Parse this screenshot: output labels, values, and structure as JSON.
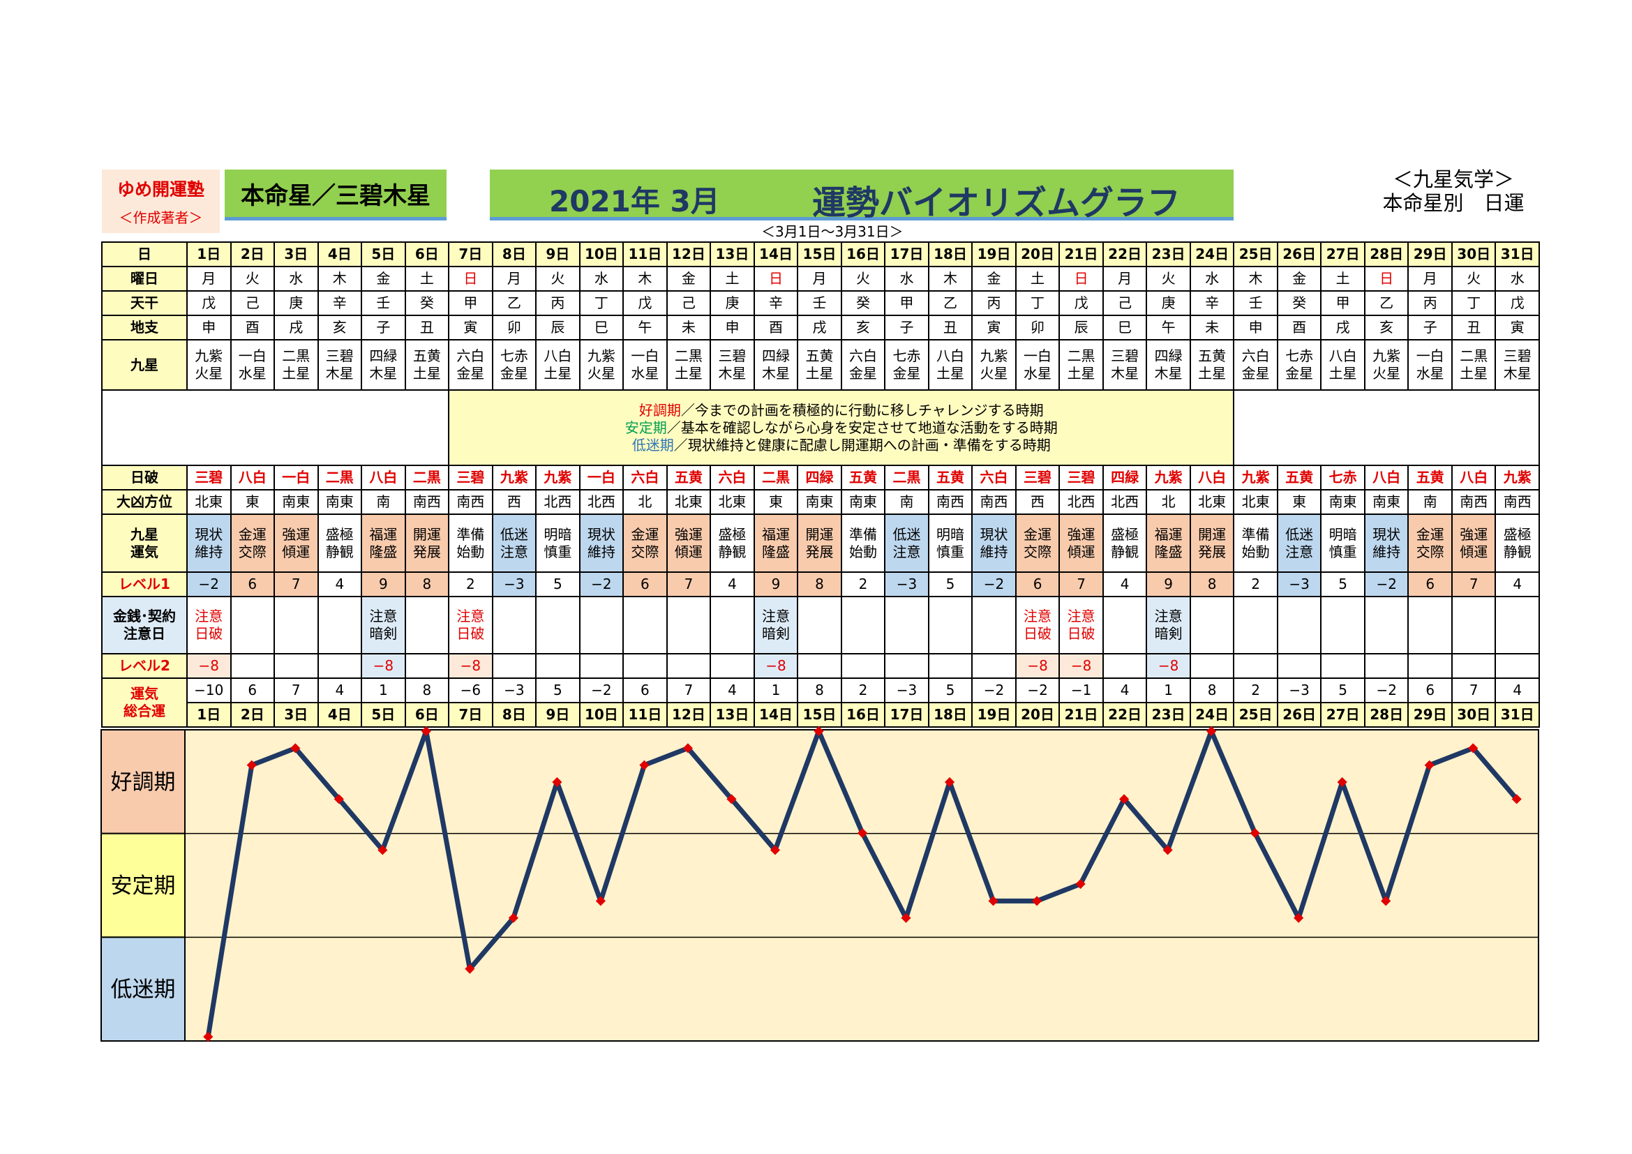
{
  "header": {
    "org_name": "ゆめ開運塾",
    "org_sub": "＜作成著者＞",
    "honmei": "本命星／三碧木星",
    "year_month": "2021年 3月",
    "title": "運勢バイオリズムグラフ",
    "range": "＜3月1日～3月31日＞",
    "kyusei_title": "＜九星気学＞",
    "kyusei_sub": "本命星別　日運"
  },
  "row_labels": {
    "day": "日",
    "weekday": "曜日",
    "tenkan": "天干",
    "chishi": "地支",
    "kyusei": "九星",
    "nippa": "日破",
    "daikyo": "大凶方位",
    "unki": "九星\n運気",
    "level1": "レベル1",
    "kinsen": "金銭･契約\n注意日",
    "level2": "レベル2",
    "sogoun": "運気\n総合運"
  },
  "messages": [
    {
      "key": "好調期",
      "text": "／今までの計画を積極的に行動に移しチャレンジする時期"
    },
    {
      "key": "安定期",
      "text": "／基本を確認しながら心身を安定させて地道な活動をする時期"
    },
    {
      "key": "低迷期",
      "text": "／現状維持と健康に配慮し開運期への計画・準備をする時期"
    }
  ],
  "days": [
    "1日",
    "2日",
    "3日",
    "4日",
    "5日",
    "6日",
    "7日",
    "8日",
    "9日",
    "10日",
    "11日",
    "12日",
    "13日",
    "14日",
    "15日",
    "16日",
    "17日",
    "18日",
    "19日",
    "20日",
    "21日",
    "22日",
    "23日",
    "24日",
    "25日",
    "26日",
    "27日",
    "28日",
    "29日",
    "30日",
    "31日"
  ],
  "weekdays": [
    "月",
    "火",
    "水",
    "木",
    "金",
    "土",
    "日",
    "月",
    "火",
    "水",
    "木",
    "金",
    "土",
    "日",
    "月",
    "火",
    "水",
    "木",
    "金",
    "土",
    "日",
    "月",
    "火",
    "水",
    "木",
    "金",
    "土",
    "日",
    "月",
    "火",
    "水"
  ],
  "tenkan": [
    "戊",
    "己",
    "庚",
    "辛",
    "壬",
    "癸",
    "甲",
    "乙",
    "丙",
    "丁",
    "戊",
    "己",
    "庚",
    "辛",
    "壬",
    "癸",
    "甲",
    "乙",
    "丙",
    "丁",
    "戊",
    "己",
    "庚",
    "辛",
    "壬",
    "癸",
    "甲",
    "乙",
    "丙",
    "丁",
    "戊"
  ],
  "chishi": [
    "申",
    "酉",
    "戌",
    "亥",
    "子",
    "丑",
    "寅",
    "卯",
    "辰",
    "巳",
    "午",
    "未",
    "申",
    "酉",
    "戌",
    "亥",
    "子",
    "丑",
    "寅",
    "卯",
    "辰",
    "巳",
    "午",
    "未",
    "申",
    "酉",
    "戌",
    "亥",
    "子",
    "丑",
    "寅"
  ],
  "kyusei": [
    "九紫\n火星",
    "一白\n水星",
    "二黒\n土星",
    "三碧\n木星",
    "四緑\n木星",
    "五黄\n土星",
    "六白\n金星",
    "七赤\n金星",
    "八白\n土星",
    "九紫\n火星",
    "一白\n水星",
    "二黒\n土星",
    "三碧\n木星",
    "四緑\n木星",
    "五黄\n土星",
    "六白\n金星",
    "七赤\n金星",
    "八白\n土星",
    "九紫\n火星",
    "一白\n水星",
    "二黒\n土星",
    "三碧\n木星",
    "四緑\n木星",
    "五黄\n土星",
    "六白\n金星",
    "七赤\n金星",
    "八白\n土星",
    "九紫\n火星",
    "一白\n水星",
    "二黒\n土星",
    "三碧\n木星"
  ],
  "nippa": [
    "三碧",
    "八白",
    "一白",
    "二黒",
    "八白",
    "二黒",
    "三碧",
    "九紫",
    "九紫",
    "一白",
    "六白",
    "五黄",
    "六白",
    "二黒",
    "四緑",
    "五黄",
    "二黒",
    "五黄",
    "六白",
    "三碧",
    "三碧",
    "四緑",
    "九紫",
    "八白",
    "九紫",
    "五黄",
    "七赤",
    "八白",
    "五黄",
    "八白",
    "九紫"
  ],
  "daikyo": [
    "北東",
    "東",
    "南東",
    "南東",
    "南",
    "南西",
    "南西",
    "西",
    "北西",
    "北西",
    "北",
    "北東",
    "北東",
    "東",
    "南東",
    "南東",
    "南",
    "南西",
    "南西",
    "西",
    "北西",
    "北西",
    "北",
    "北東",
    "北東",
    "東",
    "南東",
    "南東",
    "南",
    "南西",
    "南西"
  ],
  "unki": [
    "現状\n維持",
    "金運\n交際",
    "強運\n傾運",
    "盛極\n静観",
    "福運\n隆盛",
    "開運\n発展",
    "準備\n始動",
    "低迷\n注意",
    "明暗\n慎重",
    "現状\n維持",
    "金運\n交際",
    "強運\n傾運",
    "盛極\n静観",
    "福運\n隆盛",
    "開運\n発展",
    "準備\n始動",
    "低迷\n注意",
    "明暗\n慎重",
    "現状\n維持",
    "金運\n交際",
    "強運\n傾運",
    "盛極\n静観",
    "福運\n隆盛",
    "開運\n発展",
    "準備\n始動",
    "低迷\n注意",
    "明暗\n慎重",
    "現状\n維持",
    "金運\n交際",
    "強運\n傾運",
    "盛極\n静観"
  ],
  "level1": [
    "−2",
    "6",
    "7",
    "4",
    "9",
    "8",
    "2",
    "−3",
    "5",
    "−2",
    "6",
    "7",
    "4",
    "9",
    "8",
    "2",
    "−3",
    "5",
    "−2",
    "6",
    "7",
    "4",
    "9",
    "8",
    "2",
    "−3",
    "5",
    "−2",
    "6",
    "7",
    "4"
  ],
  "kinsen": [
    "注意\n日破",
    "",
    "",
    "",
    "注意\n暗剣",
    "",
    "注意\n日破",
    "",
    "",
    "",
    "",
    "",
    "",
    "注意\n暗剣",
    "",
    "",
    "",
    "",
    "",
    "注意\n日破",
    "注意\n日破",
    "",
    "注意\n暗剣",
    "",
    "",
    "",
    "",
    "",
    "",
    "",
    ""
  ],
  "level2": [
    "−8",
    "",
    "",
    "",
    "−8",
    "",
    "−8",
    "",
    "",
    "",
    "",
    "",
    "",
    "−8",
    "",
    "",
    "",
    "",
    "",
    "−8",
    "−8",
    "",
    "−8",
    "",
    "",
    "",
    "",
    "",
    "",
    "",
    ""
  ],
  "sogoun": [
    "−10",
    "6",
    "7",
    "4",
    "1",
    "8",
    "−6",
    "−3",
    "5",
    "−2",
    "6",
    "7",
    "4",
    "1",
    "8",
    "2",
    "−3",
    "5",
    "−2",
    "−2",
    "−1",
    "4",
    "1",
    "8",
    "2",
    "−3",
    "5",
    "−2",
    "6",
    "7",
    "4"
  ],
  "chart_data": {
    "type": "line",
    "x": [
      "1日",
      "2日",
      "3日",
      "4日",
      "5日",
      "6日",
      "7日",
      "8日",
      "9日",
      "10日",
      "11日",
      "12日",
      "13日",
      "14日",
      "15日",
      "16日",
      "17日",
      "18日",
      "19日",
      "20日",
      "21日",
      "22日",
      "23日",
      "24日",
      "25日",
      "26日",
      "27日",
      "28日",
      "29日",
      "30日",
      "31日"
    ],
    "series": [
      {
        "values": [
          -10,
          6,
          7,
          4,
          1,
          8,
          -6,
          -3,
          5,
          -2,
          6,
          7,
          4,
          1,
          8,
          2,
          -3,
          5,
          -2,
          -2,
          -1,
          4,
          1,
          8,
          2,
          -3,
          5,
          -2,
          6,
          7,
          4
        ]
      }
    ],
    "ylim": [
      -10,
      8
    ],
    "bands": [
      "好調期",
      "安定期",
      "低迷期"
    ],
    "colors": {
      "line": "#1f3864",
      "marker": "#e00000",
      "plot_bg": "#fff2cc",
      "band_good": "#f8cbad",
      "band_stable": "#ffff99",
      "band_low": "#bdd7ee"
    },
    "grid": true
  }
}
